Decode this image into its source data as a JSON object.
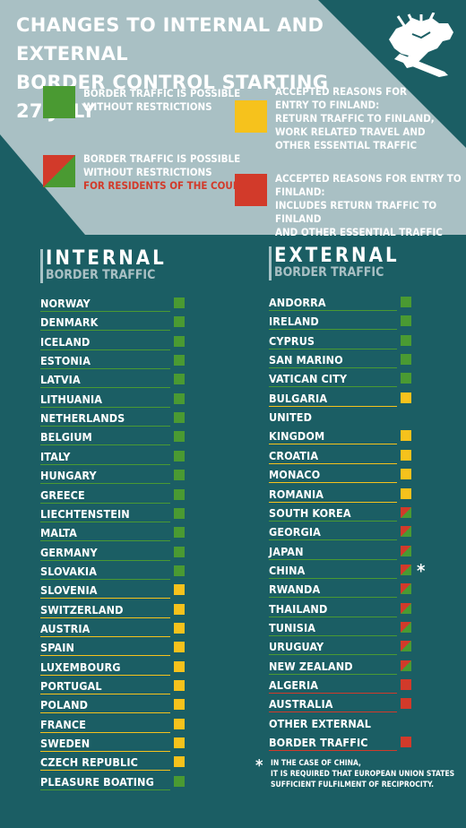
{
  "title": [
    "CHANGES TO INTERNAL AND EXTERNAL",
    "BORDER CONTROL STARTING 27 JULY"
  ],
  "colors": {
    "green": "#4a9a32",
    "yellow": "#f6c21c",
    "red": "#d23a2a",
    "background": "#1b5e64",
    "banner": "#a9c0c4"
  },
  "logo_icon": "lion-coat-of-arms-icon",
  "legend": [
    {
      "status": "green",
      "lines": [
        "BORDER TRAFFIC IS POSSIBLE",
        "WITHOUT RESTRICTIONS"
      ],
      "note": ""
    },
    {
      "status": "split",
      "lines": [
        "BORDER TRAFFIC IS POSSIBLE",
        "WITHOUT RESTRICTIONS"
      ],
      "note": "FOR RESIDENTS OF THE COUNTRY"
    },
    {
      "status": "yellow",
      "lines": [
        "ACCEPTED REASONS FOR",
        "ENTRY TO FINLAND:",
        "RETURN TRAFFIC TO FINLAND,",
        "WORK RELATED TRAVEL AND",
        "OTHER ESSENTIAL TRAFFIC"
      ],
      "note": ""
    },
    {
      "status": "red",
      "lines": [
        "ACCEPTED REASONS FOR ENTRY TO FINLAND:",
        "INCLUDES RETURN TRAFFIC TO FINLAND",
        "AND OTHER ESSENTIAL TRAFFIC"
      ],
      "note": ""
    }
  ],
  "internal": {
    "heading": "INTERNAL",
    "subheading": "BORDER TRAFFIC",
    "rows": [
      {
        "label": "NORWAY",
        "status": "green"
      },
      {
        "label": "DENMARK",
        "status": "green"
      },
      {
        "label": "ICELAND",
        "status": "green"
      },
      {
        "label": "ESTONIA",
        "status": "green"
      },
      {
        "label": "LATVIA",
        "status": "green"
      },
      {
        "label": "LITHUANIA",
        "status": "green"
      },
      {
        "label": "NETHERLANDS",
        "status": "green"
      },
      {
        "label": "BELGIUM",
        "status": "green"
      },
      {
        "label": "ITALY",
        "status": "green"
      },
      {
        "label": "HUNGARY",
        "status": "green"
      },
      {
        "label": "GREECE",
        "status": "green"
      },
      {
        "label": "LIECHTENSTEIN",
        "status": "green"
      },
      {
        "label": "MALTA",
        "status": "green"
      },
      {
        "label": "GERMANY",
        "status": "green"
      },
      {
        "label": "SLOVAKIA",
        "status": "green"
      },
      {
        "label": "SLOVENIA",
        "status": "yellow"
      },
      {
        "label": "SWITZERLAND",
        "status": "yellow"
      },
      {
        "label": "AUSTRIA",
        "status": "yellow"
      },
      {
        "label": "SPAIN",
        "status": "yellow"
      },
      {
        "label": "LUXEMBOURG",
        "status": "yellow"
      },
      {
        "label": "PORTUGAL",
        "status": "yellow"
      },
      {
        "label": "POLAND",
        "status": "yellow"
      },
      {
        "label": "FRANCE",
        "status": "yellow"
      },
      {
        "label": "SWEDEN",
        "status": "yellow"
      },
      {
        "label": "CZECH REPUBLIC",
        "status": "yellow"
      },
      {
        "label": "PLEASURE BOATING",
        "status": "green"
      }
    ]
  },
  "external": {
    "heading": "EXTERNAL",
    "subheading": "BORDER TRAFFIC",
    "rows": [
      {
        "label": "ANDORRA",
        "status": "green"
      },
      {
        "label": "IRELAND",
        "status": "green"
      },
      {
        "label": "CYPRUS",
        "status": "green"
      },
      {
        "label": "SAN MARINO",
        "status": "green"
      },
      {
        "label": "VATICAN CITY",
        "status": "green"
      },
      {
        "label": "BULGARIA",
        "status": "yellow"
      },
      {
        "label": "UNITED",
        "status": "none"
      },
      {
        "label": "KINGDOM",
        "status": "yellow"
      },
      {
        "label": "CROATIA",
        "status": "yellow"
      },
      {
        "label": "MONACO",
        "status": "yellow"
      },
      {
        "label": "ROMANIA",
        "status": "yellow"
      },
      {
        "label": "SOUTH KOREA",
        "status": "split"
      },
      {
        "label": "GEORGIA",
        "status": "split"
      },
      {
        "label": "JAPAN",
        "status": "split"
      },
      {
        "label": "CHINA",
        "status": "split",
        "asterisk": "*"
      },
      {
        "label": "RWANDA",
        "status": "split"
      },
      {
        "label": "THAILAND",
        "status": "split"
      },
      {
        "label": "TUNISIA",
        "status": "split"
      },
      {
        "label": "URUGUAY",
        "status": "split"
      },
      {
        "label": "NEW ZEALAND",
        "status": "split"
      },
      {
        "label": "ALGERIA",
        "status": "red"
      },
      {
        "label": "AUSTRALIA",
        "status": "red"
      },
      {
        "label": "OTHER EXTERNAL",
        "status": "none"
      },
      {
        "label": "BORDER TRAFFIC",
        "status": "red"
      }
    ]
  },
  "footnote": {
    "symbol": "*",
    "lines": [
      "IN THE CASE OF CHINA,",
      "IT IS REQUIRED THAT EUROPEAN UNION STATES",
      "SUFFICIENT FULFILMENT OF RECIPROCITY."
    ]
  }
}
